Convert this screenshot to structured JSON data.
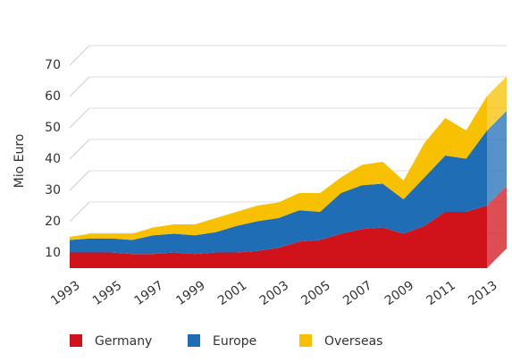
{
  "chart_data": {
    "type": "area",
    "stacked": true,
    "y_label": "Mio Euro",
    "categories": [
      "1993",
      null,
      "1995",
      null,
      "1997",
      null,
      "1999",
      null,
      "2001",
      null,
      "2003",
      null,
      "2005",
      null,
      "2007",
      null,
      "2009",
      null,
      "2011",
      null,
      "2013"
    ],
    "series": [
      {
        "name": "Germany",
        "color": "#d0121b",
        "values": [
          5,
          5,
          5,
          4.5,
          4.5,
          5,
          4.5,
          5,
          5,
          5.5,
          6.5,
          8.5,
          9,
          11,
          12.5,
          13,
          11,
          13.5,
          18,
          18,
          20
        ]
      },
      {
        "name": "Europe",
        "color": "#1f6db5",
        "values": [
          4,
          4.5,
          4.5,
          4.5,
          6,
          6,
          6,
          6.5,
          8.5,
          9.5,
          9.5,
          10,
          9,
          13,
          14,
          14,
          11,
          15.5,
          18,
          17,
          24
        ]
      },
      {
        "name": "Overseas",
        "color": "#f7c000",
        "values": [
          1,
          1.5,
          1.5,
          2,
          2.5,
          3,
          3.5,
          4.5,
          4.5,
          5,
          5,
          5.5,
          6,
          5,
          6.5,
          7,
          6,
          11,
          12,
          9,
          11
        ]
      }
    ],
    "ylim": [
      0,
      70
    ],
    "yticks": [
      10,
      20,
      30,
      40,
      50,
      60,
      70
    ],
    "grid": true
  }
}
